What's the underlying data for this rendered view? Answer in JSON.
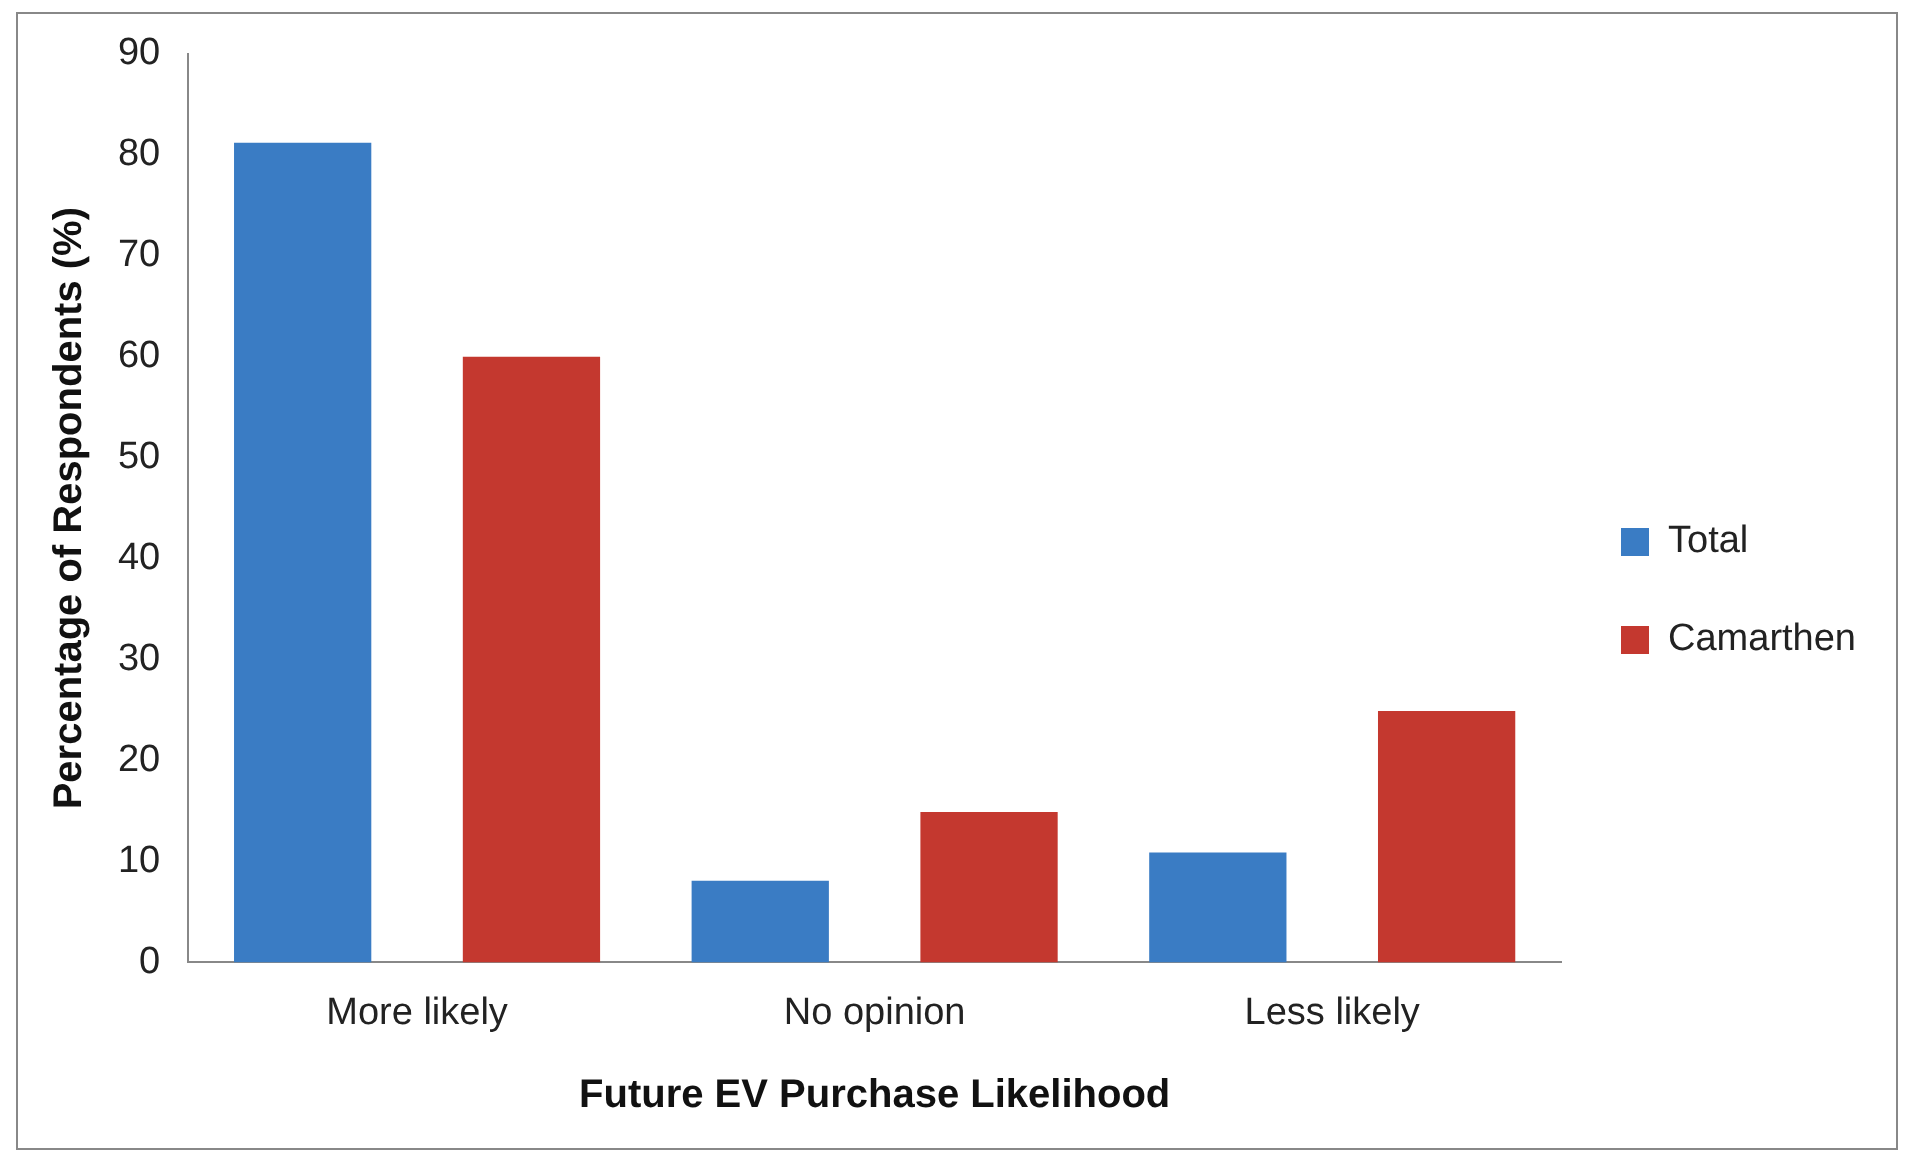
{
  "chart_data": {
    "type": "bar",
    "xlabel": "Future EV Purchase Likelihood",
    "ylabel": "Percentage of Respondents (%)",
    "categories": [
      "More likely",
      "No opinion",
      "Less likely"
    ],
    "series": [
      {
        "name": "Total",
        "color": "#3a7cc4",
        "values": [
          81.2,
          8.1,
          10.9
        ]
      },
      {
        "name": "Camarthen",
        "color": "#c4382f",
        "values": [
          60,
          14.9,
          24.9
        ]
      }
    ],
    "ylim": [
      0,
      90
    ],
    "yticks": [
      0,
      10,
      20,
      30,
      40,
      50,
      60,
      70,
      80,
      90
    ],
    "grid": false,
    "legend": "right"
  }
}
